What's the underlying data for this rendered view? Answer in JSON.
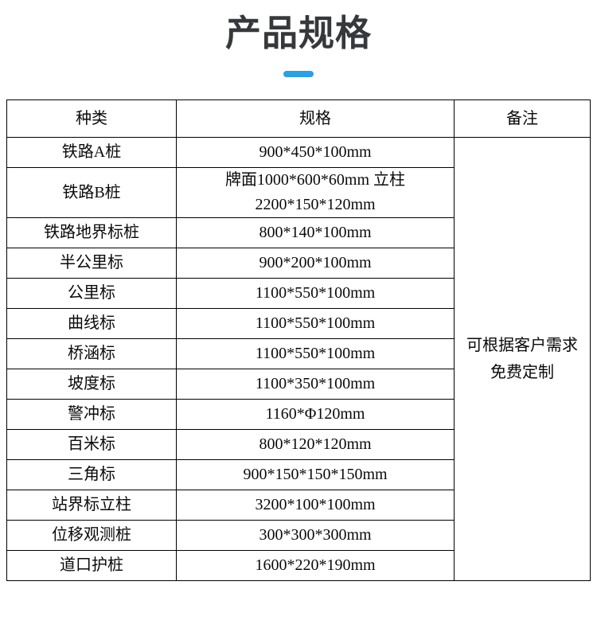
{
  "page": {
    "title": "产品规格"
  },
  "accent_color": "#2e9fdf",
  "table": {
    "headers": [
      "种类",
      "规格",
      "备注"
    ],
    "rows": [
      {
        "type": "铁路A桩",
        "spec": "900*450*100mm"
      },
      {
        "type": "铁路B桩",
        "spec": "牌面1000*600*60mm 立柱",
        "spec2": "2200*150*120mm"
      },
      {
        "type": "铁路地界标桩",
        "spec": "800*140*100mm"
      },
      {
        "type": "半公里标",
        "spec": "900*200*100mm"
      },
      {
        "type": "公里标",
        "spec": "1100*550*100mm"
      },
      {
        "type": "曲线标",
        "spec": "1100*550*100mm"
      },
      {
        "type": "桥涵标",
        "spec": "1100*550*100mm"
      },
      {
        "type": "坡度标",
        "spec": "1100*350*100mm"
      },
      {
        "type": "警冲标",
        "spec": "1160*Φ120mm"
      },
      {
        "type": "百米标",
        "spec": "800*120*120mm"
      },
      {
        "type": "三角标",
        "spec": "900*150*150*150mm"
      },
      {
        "type": "站界标立柱",
        "spec": "3200*100*100mm"
      },
      {
        "type": "位移观测桩",
        "spec": "300*300*300mm"
      },
      {
        "type": "道口护桩",
        "spec": "1600*220*190mm"
      }
    ],
    "remark": {
      "line1": "可根据客户需求",
      "line2": "免费定制"
    }
  }
}
